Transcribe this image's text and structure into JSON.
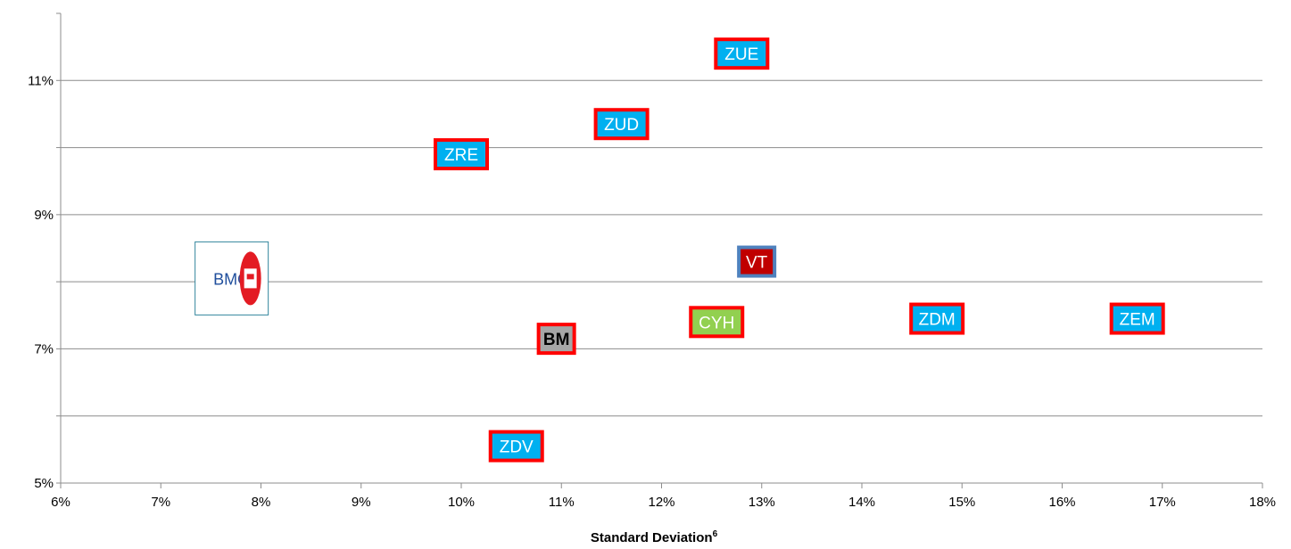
{
  "chart_data": {
    "type": "scatter",
    "title": "",
    "xlabel": "Standard Deviation",
    "xlabel_superscript": "6",
    "ylabel": "",
    "xlim": [
      6,
      18
    ],
    "ylim": [
      5,
      12
    ],
    "x_ticks": [
      "6%",
      "7%",
      "8%",
      "9%",
      "10%",
      "11%",
      "12%",
      "13%",
      "14%",
      "15%",
      "16%",
      "17%",
      "18%"
    ],
    "y_ticks_labeled": [
      "5%",
      "7%",
      "9%",
      "11%"
    ],
    "y_gridlines": [
      6,
      7,
      8,
      9,
      10,
      11
    ],
    "grid": true,
    "points": [
      {
        "label": "ZUE",
        "x": 12.8,
        "y": 11.4,
        "fill": "#00b0f0",
        "border": "#ff0000",
        "text_color": "#ffffff",
        "bold": false
      },
      {
        "label": "ZUD",
        "x": 11.6,
        "y": 10.35,
        "fill": "#00b0f0",
        "border": "#ff0000",
        "text_color": "#ffffff",
        "bold": false
      },
      {
        "label": "ZRE",
        "x": 10.0,
        "y": 9.9,
        "fill": "#00b0f0",
        "border": "#ff0000",
        "text_color": "#ffffff",
        "bold": false
      },
      {
        "label": "VT",
        "x": 12.95,
        "y": 8.3,
        "fill": "#c00000",
        "border": "#4f81bd",
        "text_color": "#ffffff",
        "bold": false
      },
      {
        "label": "CYH",
        "x": 12.55,
        "y": 7.4,
        "fill": "#92d050",
        "border": "#ff0000",
        "text_color": "#ffffff",
        "bold": false
      },
      {
        "label": "ZDM",
        "x": 14.75,
        "y": 7.45,
        "fill": "#00b0f0",
        "border": "#ff0000",
        "text_color": "#ffffff",
        "bold": false
      },
      {
        "label": "ZEM",
        "x": 16.75,
        "y": 7.45,
        "fill": "#00b0f0",
        "border": "#ff0000",
        "text_color": "#ffffff",
        "bold": false
      },
      {
        "label": "BM",
        "x": 10.95,
        "y": 7.15,
        "fill": "#a6a6a6",
        "border": "#ff0000",
        "text_color": "#000000",
        "bold": true
      },
      {
        "label": "ZDV",
        "x": 10.55,
        "y": 5.55,
        "fill": "#00b0f0",
        "border": "#ff0000",
        "text_color": "#ffffff",
        "bold": false
      }
    ],
    "logo": {
      "text": "BMO",
      "x": 7.85,
      "y": 8.05,
      "icon": "bmo-roundel-icon",
      "text_color": "#1f4e9c",
      "roundel_color": "#e31b23",
      "border": "#31859c"
    }
  }
}
